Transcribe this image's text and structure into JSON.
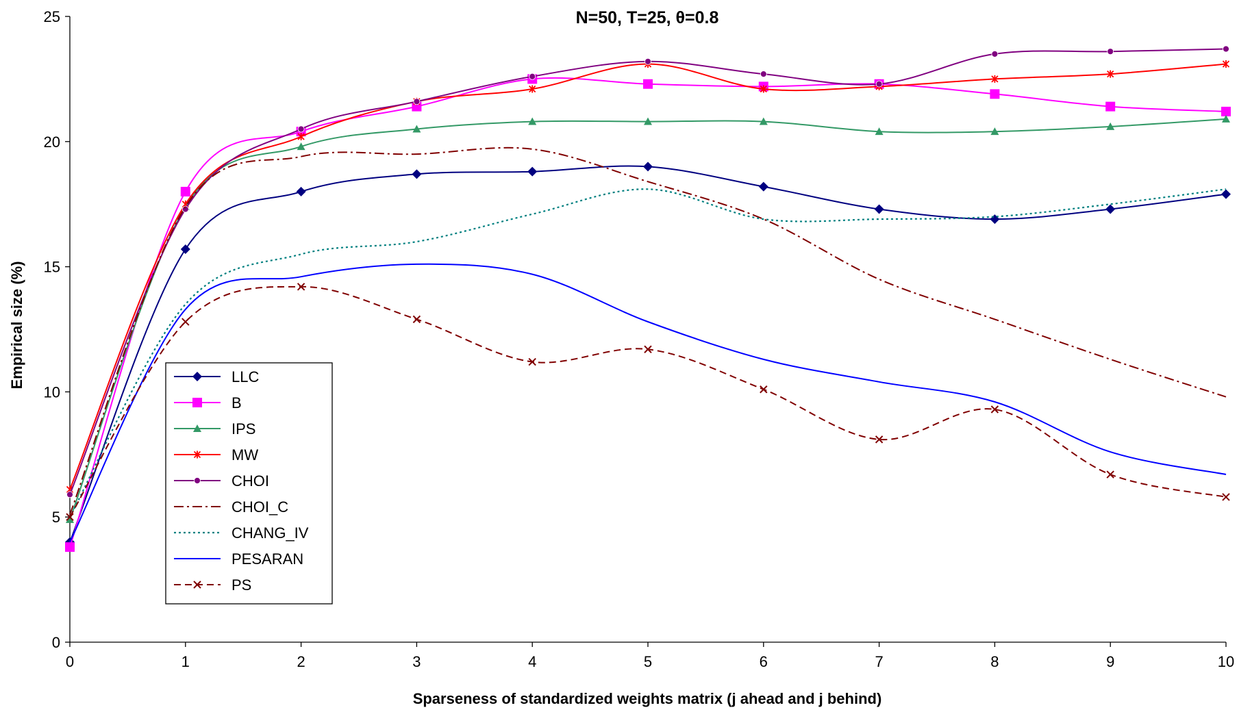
{
  "chart_data": {
    "type": "line",
    "title": "N=50, T=25, θ=0.8",
    "xlabel": "Sparseness of standardized weights matrix (j ahead and j behind)",
    "ylabel": "Empirical size (%)",
    "xlim": [
      0,
      10
    ],
    "ylim": [
      0,
      25
    ],
    "x_ticks": [
      "0",
      "1",
      "2",
      "3",
      "4",
      "5",
      "6",
      "7",
      "8",
      "9",
      "10"
    ],
    "y_ticks": [
      "0",
      "5",
      "10",
      "15",
      "20",
      "25"
    ],
    "grid": false,
    "legend_position": "left-center",
    "x": [
      0,
      1,
      2,
      3,
      4,
      5,
      6,
      7,
      8,
      9,
      10
    ],
    "series": [
      {
        "name": "LLC",
        "values": [
          4.0,
          15.7,
          18.0,
          18.7,
          18.8,
          19.0,
          18.2,
          17.3,
          16.9,
          17.3,
          17.9
        ],
        "color": "#000080",
        "dash": "",
        "width": 2,
        "marker": "diamond"
      },
      {
        "name": "B",
        "values": [
          3.8,
          18.0,
          20.4,
          21.4,
          22.5,
          22.3,
          22.2,
          22.3,
          21.9,
          21.4,
          21.2
        ],
        "color": "#FF00FF",
        "dash": "",
        "width": 2,
        "marker": "square"
      },
      {
        "name": "IPS",
        "values": [
          4.9,
          17.4,
          19.8,
          20.5,
          20.8,
          20.8,
          20.8,
          20.4,
          20.4,
          20.6,
          20.9
        ],
        "color": "#339966",
        "dash": "",
        "width": 2,
        "marker": "triangle"
      },
      {
        "name": "MW",
        "values": [
          6.1,
          17.5,
          20.2,
          21.6,
          22.1,
          23.1,
          22.1,
          22.2,
          22.5,
          22.7,
          23.1
        ],
        "color": "#FF0000",
        "dash": "",
        "width": 2,
        "marker": "star"
      },
      {
        "name": "CHOI",
        "values": [
          5.9,
          17.3,
          20.5,
          21.6,
          22.6,
          23.2,
          22.7,
          22.3,
          23.5,
          23.6,
          23.7
        ],
        "color": "#800080",
        "dash": "",
        "width": 2,
        "marker": "circle"
      },
      {
        "name": "CHOI_C",
        "values": [
          5.1,
          17.4,
          19.4,
          19.5,
          19.7,
          18.4,
          16.9,
          14.5,
          12.9,
          11.3,
          9.8
        ],
        "color": "#800000",
        "dash": "14,5,3,5",
        "width": 2,
        "marker": "none"
      },
      {
        "name": "CHANG_IV",
        "values": [
          5.0,
          13.5,
          15.5,
          16.0,
          17.1,
          18.1,
          16.9,
          16.9,
          17.0,
          17.5,
          18.1
        ],
        "color": "#008080",
        "dash": "3,4",
        "width": 2.2,
        "marker": "none"
      },
      {
        "name": "PESARAN",
        "values": [
          4.0,
          13.3,
          14.6,
          15.1,
          14.7,
          12.8,
          11.3,
          10.4,
          9.6,
          7.6,
          6.7
        ],
        "color": "#0000FF",
        "dash": "",
        "width": 2,
        "marker": "none"
      },
      {
        "name": "PS",
        "values": [
          5.0,
          12.8,
          14.2,
          12.9,
          11.2,
          11.7,
          10.1,
          8.1,
          9.3,
          6.7,
          5.8
        ],
        "color": "#800000",
        "dash": "10,6",
        "width": 2,
        "marker": "x"
      }
    ]
  }
}
